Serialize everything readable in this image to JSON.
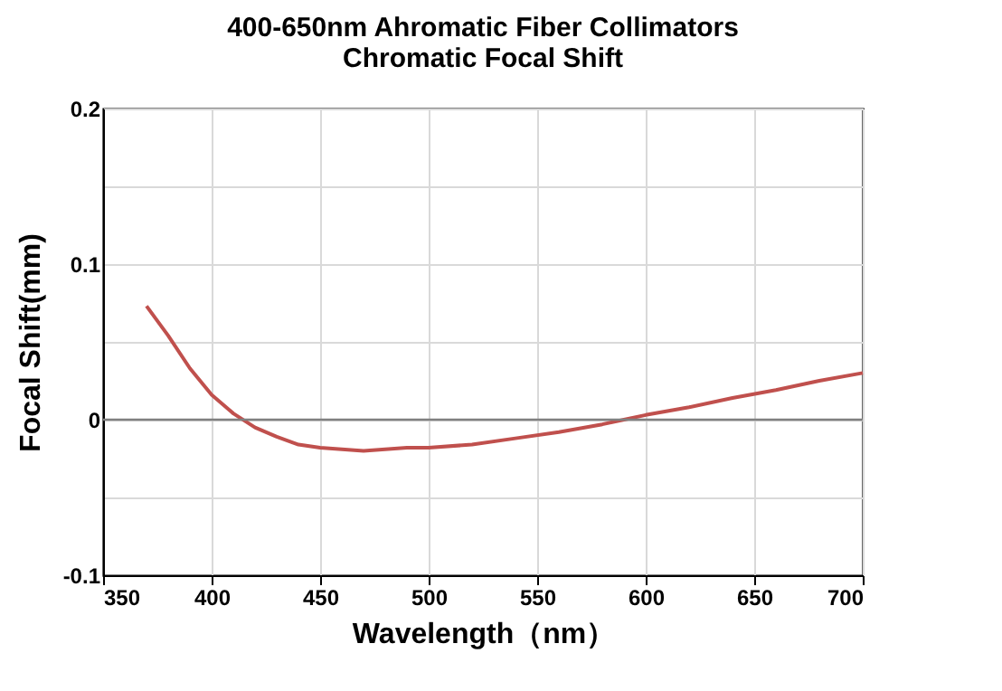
{
  "chart_data": {
    "type": "line",
    "title": "400-650nm Ahromatic  Fiber Collimators\nChromatic Focal Shift",
    "xlabel": "Wavelength（nm）",
    "ylabel": "Focal Shift(mm)",
    "x": [
      370,
      380,
      390,
      400,
      410,
      420,
      430,
      440,
      450,
      460,
      470,
      480,
      490,
      500,
      520,
      540,
      560,
      580,
      590,
      600,
      620,
      640,
      660,
      680,
      700
    ],
    "series": [
      {
        "color": "#c0504d",
        "values": [
          0.073,
          0.054,
          0.033,
          0.016,
          0.004,
          -0.005,
          -0.011,
          -0.016,
          -0.018,
          -0.019,
          -0.02,
          -0.019,
          -0.018,
          -0.018,
          -0.016,
          -0.012,
          -0.008,
          -0.003,
          0,
          0.003,
          0.008,
          0.014,
          0.019,
          0.025,
          0.03
        ]
      }
    ],
    "xlim": [
      350,
      700
    ],
    "xticks": [
      350,
      400,
      450,
      500,
      550,
      600,
      650,
      700
    ],
    "ylim": [
      -0.1,
      0.2
    ],
    "yticks": [
      "-0.1",
      {
        "value": -0.05,
        "label": null
      },
      0,
      {
        "value": 0.05,
        "label": null
      },
      0.1,
      {
        "value": 0.15,
        "label": null
      },
      0.2
    ],
    "ref_lines": [
      {
        "axis": "y",
        "value": 0,
        "color": "#808080"
      }
    ],
    "grid": true,
    "marker": "none",
    "line_style": "solid"
  }
}
